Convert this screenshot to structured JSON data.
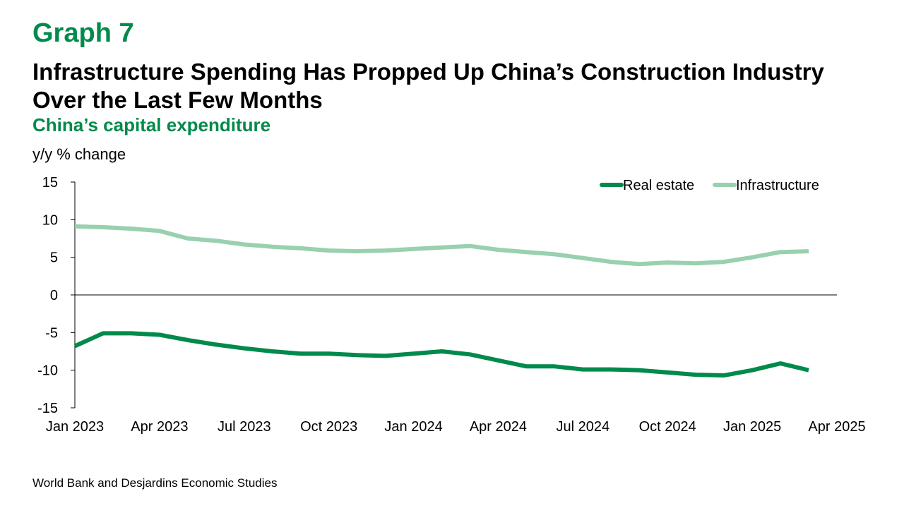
{
  "header": {
    "graph_label": "Graph 7",
    "title": "Infrastructure Spending Has Propped Up China’s Construction Industry Over the Last Few Months",
    "subtitle": "China’s capital expenditure",
    "axis_unit": "y/y % change"
  },
  "footer": {
    "source": "World Bank and Desjardins Economic Studies"
  },
  "colors": {
    "brand_green": "#008a4b",
    "real_estate": "#008a4b",
    "infrastructure": "#99d0b0",
    "axis": "#000000"
  },
  "chart_data": {
    "type": "line",
    "title": "Infrastructure Spending Has Propped Up China’s Construction Industry Over the Last Few Months",
    "subtitle": "China’s capital expenditure",
    "ylabel": "y/y % change",
    "xlabel": "",
    "ylim": [
      -15,
      15
    ],
    "yticks": [
      15,
      10,
      5,
      0,
      -5,
      -10,
      -15
    ],
    "xlim": [
      "Jan 2023",
      "Apr 2025"
    ],
    "xticks": [
      "Jan 2023",
      "Apr 2023",
      "Jul 2023",
      "Oct 2023",
      "Jan 2024",
      "Apr 2024",
      "Jul 2024",
      "Oct 2024",
      "Jan 2025",
      "Apr 2025"
    ],
    "grid": false,
    "legend": "top-right",
    "x": [
      "Jan 2023",
      "Feb 2023",
      "Mar 2023",
      "Apr 2023",
      "May 2023",
      "Jun 2023",
      "Jul 2023",
      "Aug 2023",
      "Sep 2023",
      "Oct 2023",
      "Nov 2023",
      "Dec 2023",
      "Jan 2024",
      "Feb 2024",
      "Mar 2024",
      "Apr 2024",
      "May 2024",
      "Jun 2024",
      "Jul 2024",
      "Aug 2024",
      "Sep 2024",
      "Oct 2024",
      "Nov 2024",
      "Dec 2024",
      "Jan 2025",
      "Feb 2025",
      "Mar 2025"
    ],
    "series": [
      {
        "name": "Real estate",
        "values": [
          -6.8,
          -5.1,
          -5.1,
          -5.3,
          -6.0,
          -6.6,
          -7.1,
          -7.5,
          -7.8,
          -7.8,
          -8.0,
          -8.1,
          -7.8,
          -7.5,
          -7.9,
          -8.7,
          -9.5,
          -9.5,
          -9.9,
          -9.9,
          -10.0,
          -10.3,
          -10.6,
          -10.7,
          -10.0,
          -9.1,
          -10.0
        ]
      },
      {
        "name": "Infrastructure",
        "values": [
          9.1,
          9.0,
          8.8,
          8.5,
          7.5,
          7.2,
          6.7,
          6.4,
          6.2,
          5.9,
          5.8,
          5.9,
          6.1,
          6.3,
          6.5,
          6.0,
          5.7,
          5.4,
          4.9,
          4.4,
          4.1,
          4.3,
          4.2,
          4.4,
          5.0,
          5.7,
          5.8
        ]
      }
    ]
  }
}
